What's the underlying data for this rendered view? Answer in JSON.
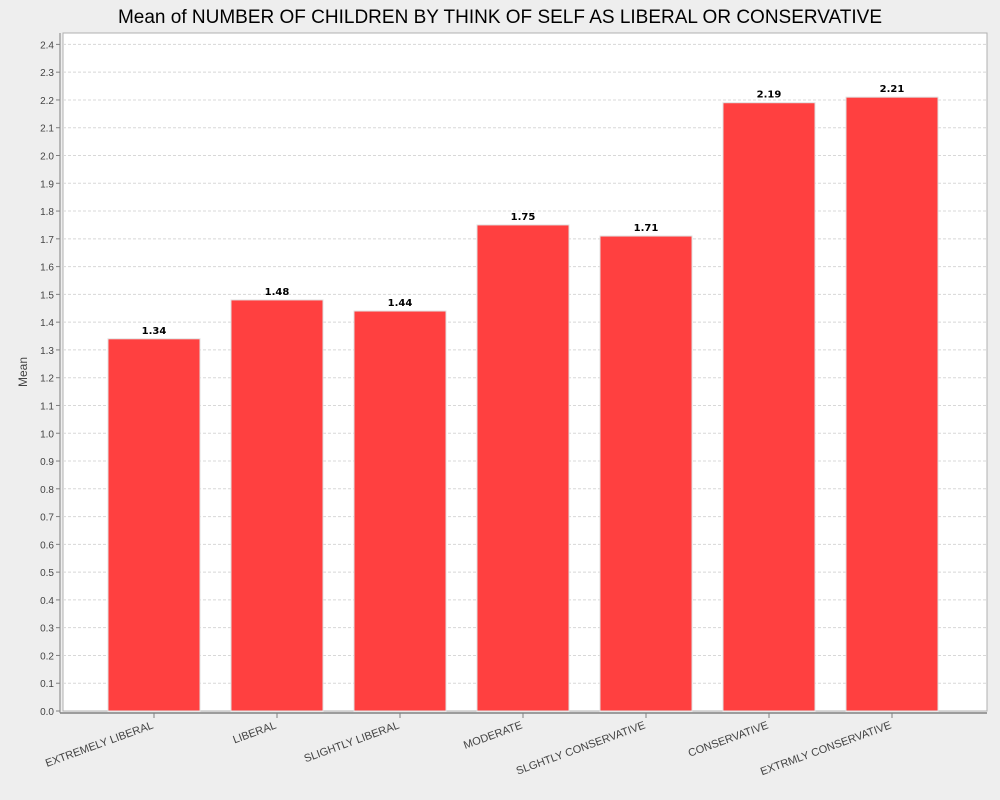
{
  "chart_data": {
    "type": "bar",
    "title": "Mean of NUMBER OF CHILDREN BY THINK OF SELF AS LIBERAL OR CONSERVATIVE",
    "xlabel": "",
    "ylabel": "Mean",
    "categories": [
      "EXTREMELY LIBERAL",
      "LIBERAL",
      "SLIGHTLY LIBERAL",
      "MODERATE",
      "SLGHTLY CONSERVATIVE",
      "CONSERVATIVE",
      "EXTRMLY CONSERVATIVE"
    ],
    "values": [
      1.34,
      1.48,
      1.44,
      1.75,
      1.71,
      2.19,
      2.21
    ],
    "value_labels": [
      "1.34",
      "1.48",
      "1.44",
      "1.75",
      "1.71",
      "2.19",
      "2.21"
    ],
    "ylim": [
      0,
      2.4
    ],
    "yticks": [
      "0.0",
      "0.1",
      "0.2",
      "0.3",
      "0.4",
      "0.5",
      "0.6",
      "0.7",
      "0.8",
      "0.9",
      "1.0",
      "1.1",
      "1.2",
      "1.3",
      "1.4",
      "1.5",
      "1.6",
      "1.7",
      "1.8",
      "1.9",
      "2.0",
      "2.1",
      "2.2",
      "2.3",
      "2.4"
    ],
    "grid": true,
    "legend": "none",
    "bar_color": "#ff4040",
    "bar_edge_color": "#e0e0e0",
    "grid_color": "#d8d8d8",
    "background_color": "#eeeeee",
    "plot_background_color": "#ffffff"
  }
}
